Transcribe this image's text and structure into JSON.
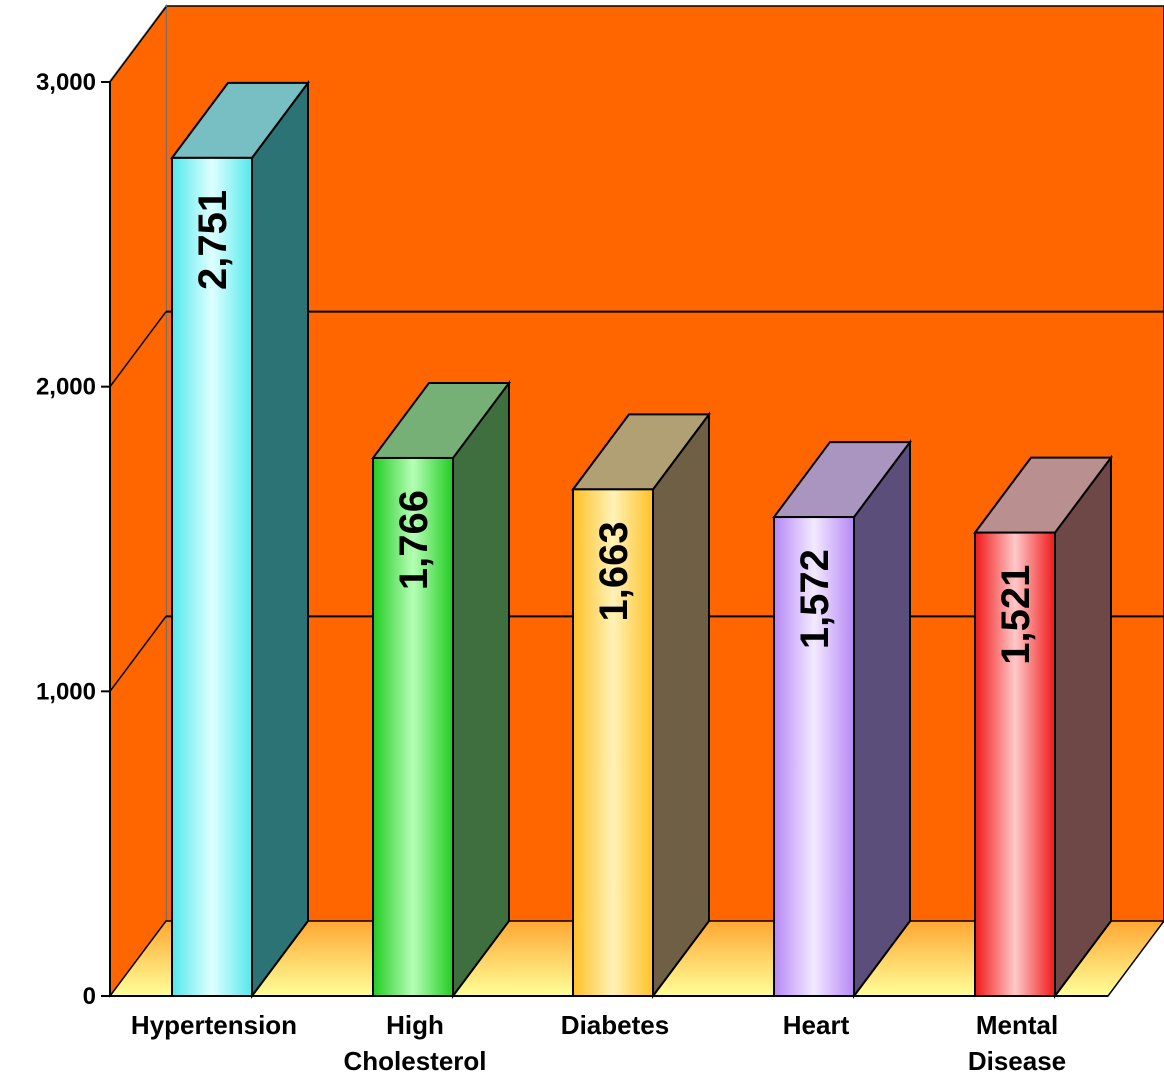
{
  "chart_data": {
    "type": "bar",
    "categories": [
      [
        "Hypertension"
      ],
      [
        "High",
        "Cholesterol"
      ],
      [
        "Diabetes"
      ],
      [
        "Heart"
      ],
      [
        "Mental",
        "Disease"
      ]
    ],
    "values": [
      2751,
      1766,
      1663,
      1572,
      1521
    ],
    "value_labels": [
      "2,751",
      "1,766",
      "1,663",
      "1,572",
      "1,521"
    ],
    "ylim": [
      0,
      3000
    ],
    "yticks": [
      0,
      1000,
      2000,
      3000
    ],
    "ytick_labels": [
      "0",
      "1,000",
      "2,000",
      "3,000"
    ],
    "grid": true,
    "style": "3d",
    "colors": {
      "wall": "#ff6600",
      "floor_light": "#ffff99",
      "floor_dark": "#ffa733",
      "bars": [
        {
          "front": [
            "#55e8ec",
            "#dfffff",
            "#55e8ec"
          ],
          "side": "#2b7375",
          "top": "#77bfc2"
        },
        {
          "front": [
            "#22cc22",
            "#b6ffb6",
            "#22cc22"
          ],
          "side": "#3f6e3f",
          "top": "#76b076"
        },
        {
          "front": [
            "#ffc126",
            "#fff2b8",
            "#ffc126"
          ],
          "side": "#6e5f45",
          "top": "#b0a074"
        },
        {
          "front": [
            "#b688f5",
            "#f3eaff",
            "#b688f5"
          ],
          "side": "#5c4e7a",
          "top": "#a995c0"
        },
        {
          "front": [
            "#f01818",
            "#ffc9c9",
            "#f01818"
          ],
          "side": "#6e4747",
          "top": "#b98f8f"
        }
      ]
    }
  }
}
